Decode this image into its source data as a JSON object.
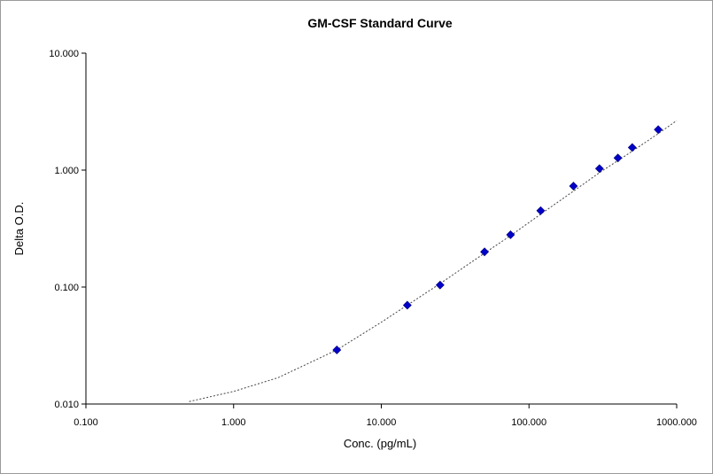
{
  "chart_data": {
    "type": "scatter",
    "title": "GM-CSF Standard Curve",
    "xlabel": "Conc. (pg/mL)",
    "ylabel": "Delta O.D.",
    "x_scale": "log",
    "y_scale": "log",
    "xlim": [
      0.1,
      1000
    ],
    "ylim": [
      0.01,
      10
    ],
    "x_ticks": [
      {
        "value": 0.1,
        "label": "0.100"
      },
      {
        "value": 1,
        "label": "1.000"
      },
      {
        "value": 10,
        "label": "10.000"
      },
      {
        "value": 100,
        "label": "100.000"
      },
      {
        "value": 1000,
        "label": "1000.000"
      }
    ],
    "y_ticks": [
      {
        "value": 0.01,
        "label": "0.010"
      },
      {
        "value": 0.1,
        "label": "0.100"
      },
      {
        "value": 1,
        "label": "1.000"
      },
      {
        "value": 10,
        "label": "10.000"
      }
    ],
    "grid": false,
    "marker_color": "#0000c8",
    "fit_line_color": "#444444",
    "fit_line_style": "dotted",
    "points": [
      {
        "x": 5,
        "y": 0.029
      },
      {
        "x": 15,
        "y": 0.07
      },
      {
        "x": 25,
        "y": 0.104
      },
      {
        "x": 50,
        "y": 0.2
      },
      {
        "x": 75,
        "y": 0.28
      },
      {
        "x": 120,
        "y": 0.45
      },
      {
        "x": 200,
        "y": 0.73
      },
      {
        "x": 300,
        "y": 1.03
      },
      {
        "x": 400,
        "y": 1.27
      },
      {
        "x": 500,
        "y": 1.56
      },
      {
        "x": 750,
        "y": 2.22
      }
    ],
    "fit_curve": [
      {
        "x": 0.5,
        "y": 0.0105
      },
      {
        "x": 1,
        "y": 0.0128
      },
      {
        "x": 2,
        "y": 0.0168
      },
      {
        "x": 5,
        "y": 0.029
      },
      {
        "x": 10,
        "y": 0.05
      },
      {
        "x": 15,
        "y": 0.07
      },
      {
        "x": 25,
        "y": 0.107
      },
      {
        "x": 50,
        "y": 0.195
      },
      {
        "x": 75,
        "y": 0.275
      },
      {
        "x": 120,
        "y": 0.42
      },
      {
        "x": 200,
        "y": 0.66
      },
      {
        "x": 300,
        "y": 0.95
      },
      {
        "x": 500,
        "y": 1.45
      },
      {
        "x": 750,
        "y": 2.05
      },
      {
        "x": 1000,
        "y": 2.65
      }
    ]
  }
}
